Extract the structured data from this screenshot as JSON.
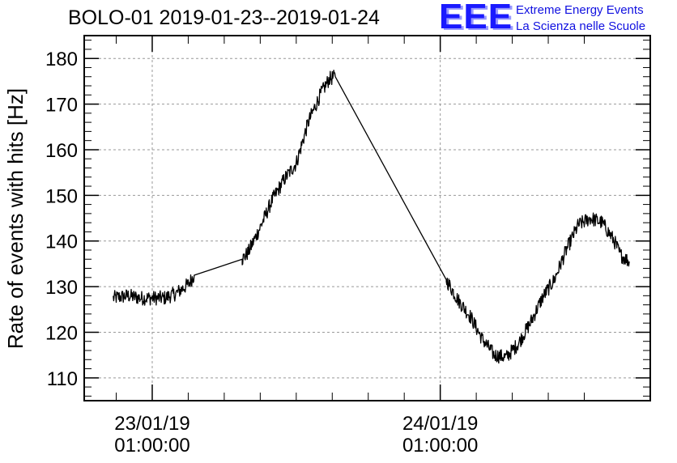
{
  "title": "BOLO-01 2019-01-23--2019-01-24",
  "logo": {
    "mark": "EEE",
    "line1": "Extreme Energy Events",
    "line2": "La Scienza nelle Scuole",
    "color": "#1a1aff"
  },
  "chart_data": {
    "type": "line",
    "title": "BOLO-01 2019-01-23--2019-01-24",
    "xlabel": "",
    "ylabel": "Rate of events with hits [Hz]",
    "ylim": [
      105,
      185
    ],
    "xlim": [
      "2019-01-22 19:20",
      "2019-01-24 18:30"
    ],
    "grid": true,
    "x_tick_labels": [
      {
        "date": "23/01/19",
        "time": "01:00:00",
        "x": "2019-01-23 01:00"
      },
      {
        "date": "24/01/19",
        "time": "01:00:00",
        "x": "2019-01-24 01:00"
      }
    ],
    "y_ticks": [
      110,
      120,
      130,
      140,
      150,
      160,
      170,
      180
    ],
    "series": [
      {
        "color": "#000000",
        "points": [
          [
            "2019-01-22 21:45",
            127.5
          ],
          [
            "2019-01-22 23:00",
            128.0
          ],
          [
            "2019-01-23 00:00",
            127.5
          ],
          [
            "2019-01-23 01:00",
            127.5
          ],
          [
            "2019-01-23 02:00",
            127.5
          ],
          [
            "2019-01-23 03:00",
            128.5
          ],
          [
            "2019-01-23 04:00",
            130.5
          ],
          [
            "2019-01-23 04:30",
            132.5
          ],
          [
            "2019-01-23 08:30",
            136.0
          ],
          [
            "2019-01-23 09:00",
            137.5
          ],
          [
            "2019-01-23 10:00",
            143.0
          ],
          [
            "2019-01-23 11:00",
            149.0
          ],
          [
            "2019-01-23 12:00",
            153.5
          ],
          [
            "2019-01-23 13:00",
            157.0
          ],
          [
            "2019-01-23 14:00",
            166.0
          ],
          [
            "2019-01-23 15:00",
            172.0
          ],
          [
            "2019-01-23 15:45",
            175.5
          ],
          [
            "2019-01-23 16:15",
            176.0
          ],
          [
            "2019-01-24 01:30",
            131.5
          ],
          [
            "2019-01-24 02:30",
            127.0
          ],
          [
            "2019-01-24 03:30",
            123.5
          ],
          [
            "2019-01-24 04:30",
            118.5
          ],
          [
            "2019-01-24 05:30",
            115.0
          ],
          [
            "2019-01-24 06:30",
            114.5
          ],
          [
            "2019-01-24 07:30",
            117.5
          ],
          [
            "2019-01-24 08:30",
            122.0
          ],
          [
            "2019-01-24 09:30",
            127.5
          ],
          [
            "2019-01-24 10:30",
            131.5
          ],
          [
            "2019-01-24 11:30",
            138.0
          ],
          [
            "2019-01-24 12:30",
            143.5
          ],
          [
            "2019-01-24 13:30",
            145.0
          ],
          [
            "2019-01-24 14:30",
            144.0
          ],
          [
            "2019-01-24 15:30",
            140.0
          ],
          [
            "2019-01-24 16:00",
            137.0
          ],
          [
            "2019-01-24 16:45",
            135.5
          ]
        ],
        "noise_hz": 1.6
      }
    ]
  }
}
